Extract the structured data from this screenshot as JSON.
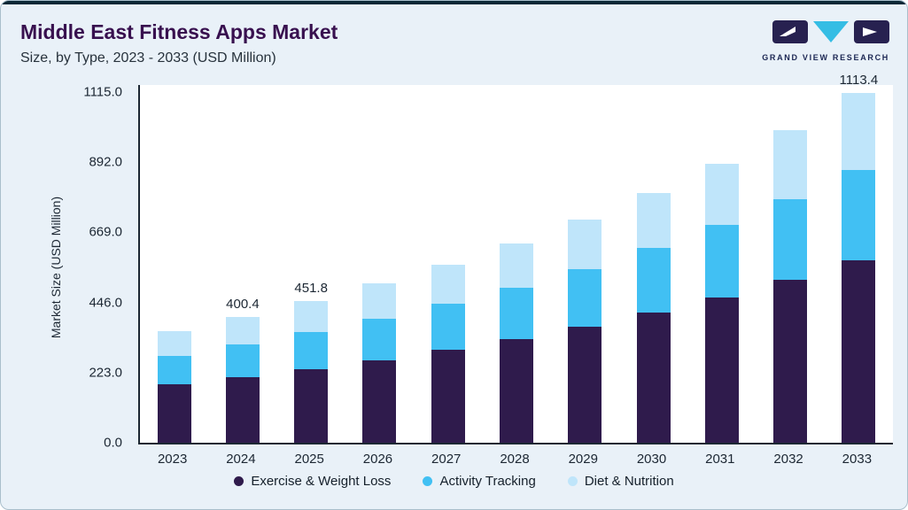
{
  "header": {
    "title": "Middle East Fitness Apps Market",
    "subtitle": "Size, by Type, 2023 - 2033 (USD Million)",
    "logo_text": "GRAND VIEW RESEARCH"
  },
  "colors": {
    "card_background": "#e9f1f8",
    "top_accent": "#0b2836",
    "title_purple": "#38104f",
    "axis_text": "#1c2733",
    "series_exercise": "#2f1b4c",
    "series_activity": "#41c0f3",
    "series_diet": "#bfe5fa"
  },
  "chart_data": {
    "type": "bar",
    "stacked": true,
    "title": "Middle East Fitness Apps Market Size, by Type, 2023 - 2033 (USD Million)",
    "xlabel": "",
    "ylabel": "Market Size (USD Million)",
    "ylim": [
      0,
      1115
    ],
    "grid": false,
    "legend_position": "bottom",
    "yticks": [
      0,
      223,
      446,
      669,
      892,
      1115
    ],
    "ytick_labels": [
      "0.0",
      "223.0",
      "446.0",
      "669.0",
      "892.0",
      "1115.0"
    ],
    "categories": [
      "2023",
      "2024",
      "2025",
      "2026",
      "2027",
      "2028",
      "2029",
      "2030",
      "2031",
      "2032",
      "2033"
    ],
    "series": [
      {
        "name": "Exercise & Weight Loss",
        "color": "#2f1b4c",
        "values": [
          184.6,
          208.2,
          234.9,
          263.0,
          294.3,
          329.4,
          368.7,
          412.7,
          462.0,
          517.1,
          579.0
        ]
      },
      {
        "name": "Activity Tracking",
        "color": "#41c0f3",
        "values": [
          92.3,
          104.1,
          117.5,
          131.5,
          147.2,
          164.7,
          184.4,
          206.4,
          231.0,
          258.5,
          289.5
        ]
      },
      {
        "name": "Diet & Nutrition",
        "color": "#bfe5fa",
        "values": [
          78.1,
          88.1,
          99.4,
          111.2,
          124.5,
          139.4,
          156.0,
          174.6,
          195.4,
          218.8,
          244.9
        ]
      }
    ],
    "totals": [
      355.0,
      400.4,
      451.8,
      505.7,
      566.0,
      633.5,
      709.1,
      793.7,
      888.4,
      994.4,
      1113.4
    ],
    "bar_labels": [
      {
        "category": "2024",
        "text": "400.4"
      },
      {
        "category": "2025",
        "text": "451.8"
      },
      {
        "category": "2033",
        "text": "1113.4"
      }
    ]
  }
}
